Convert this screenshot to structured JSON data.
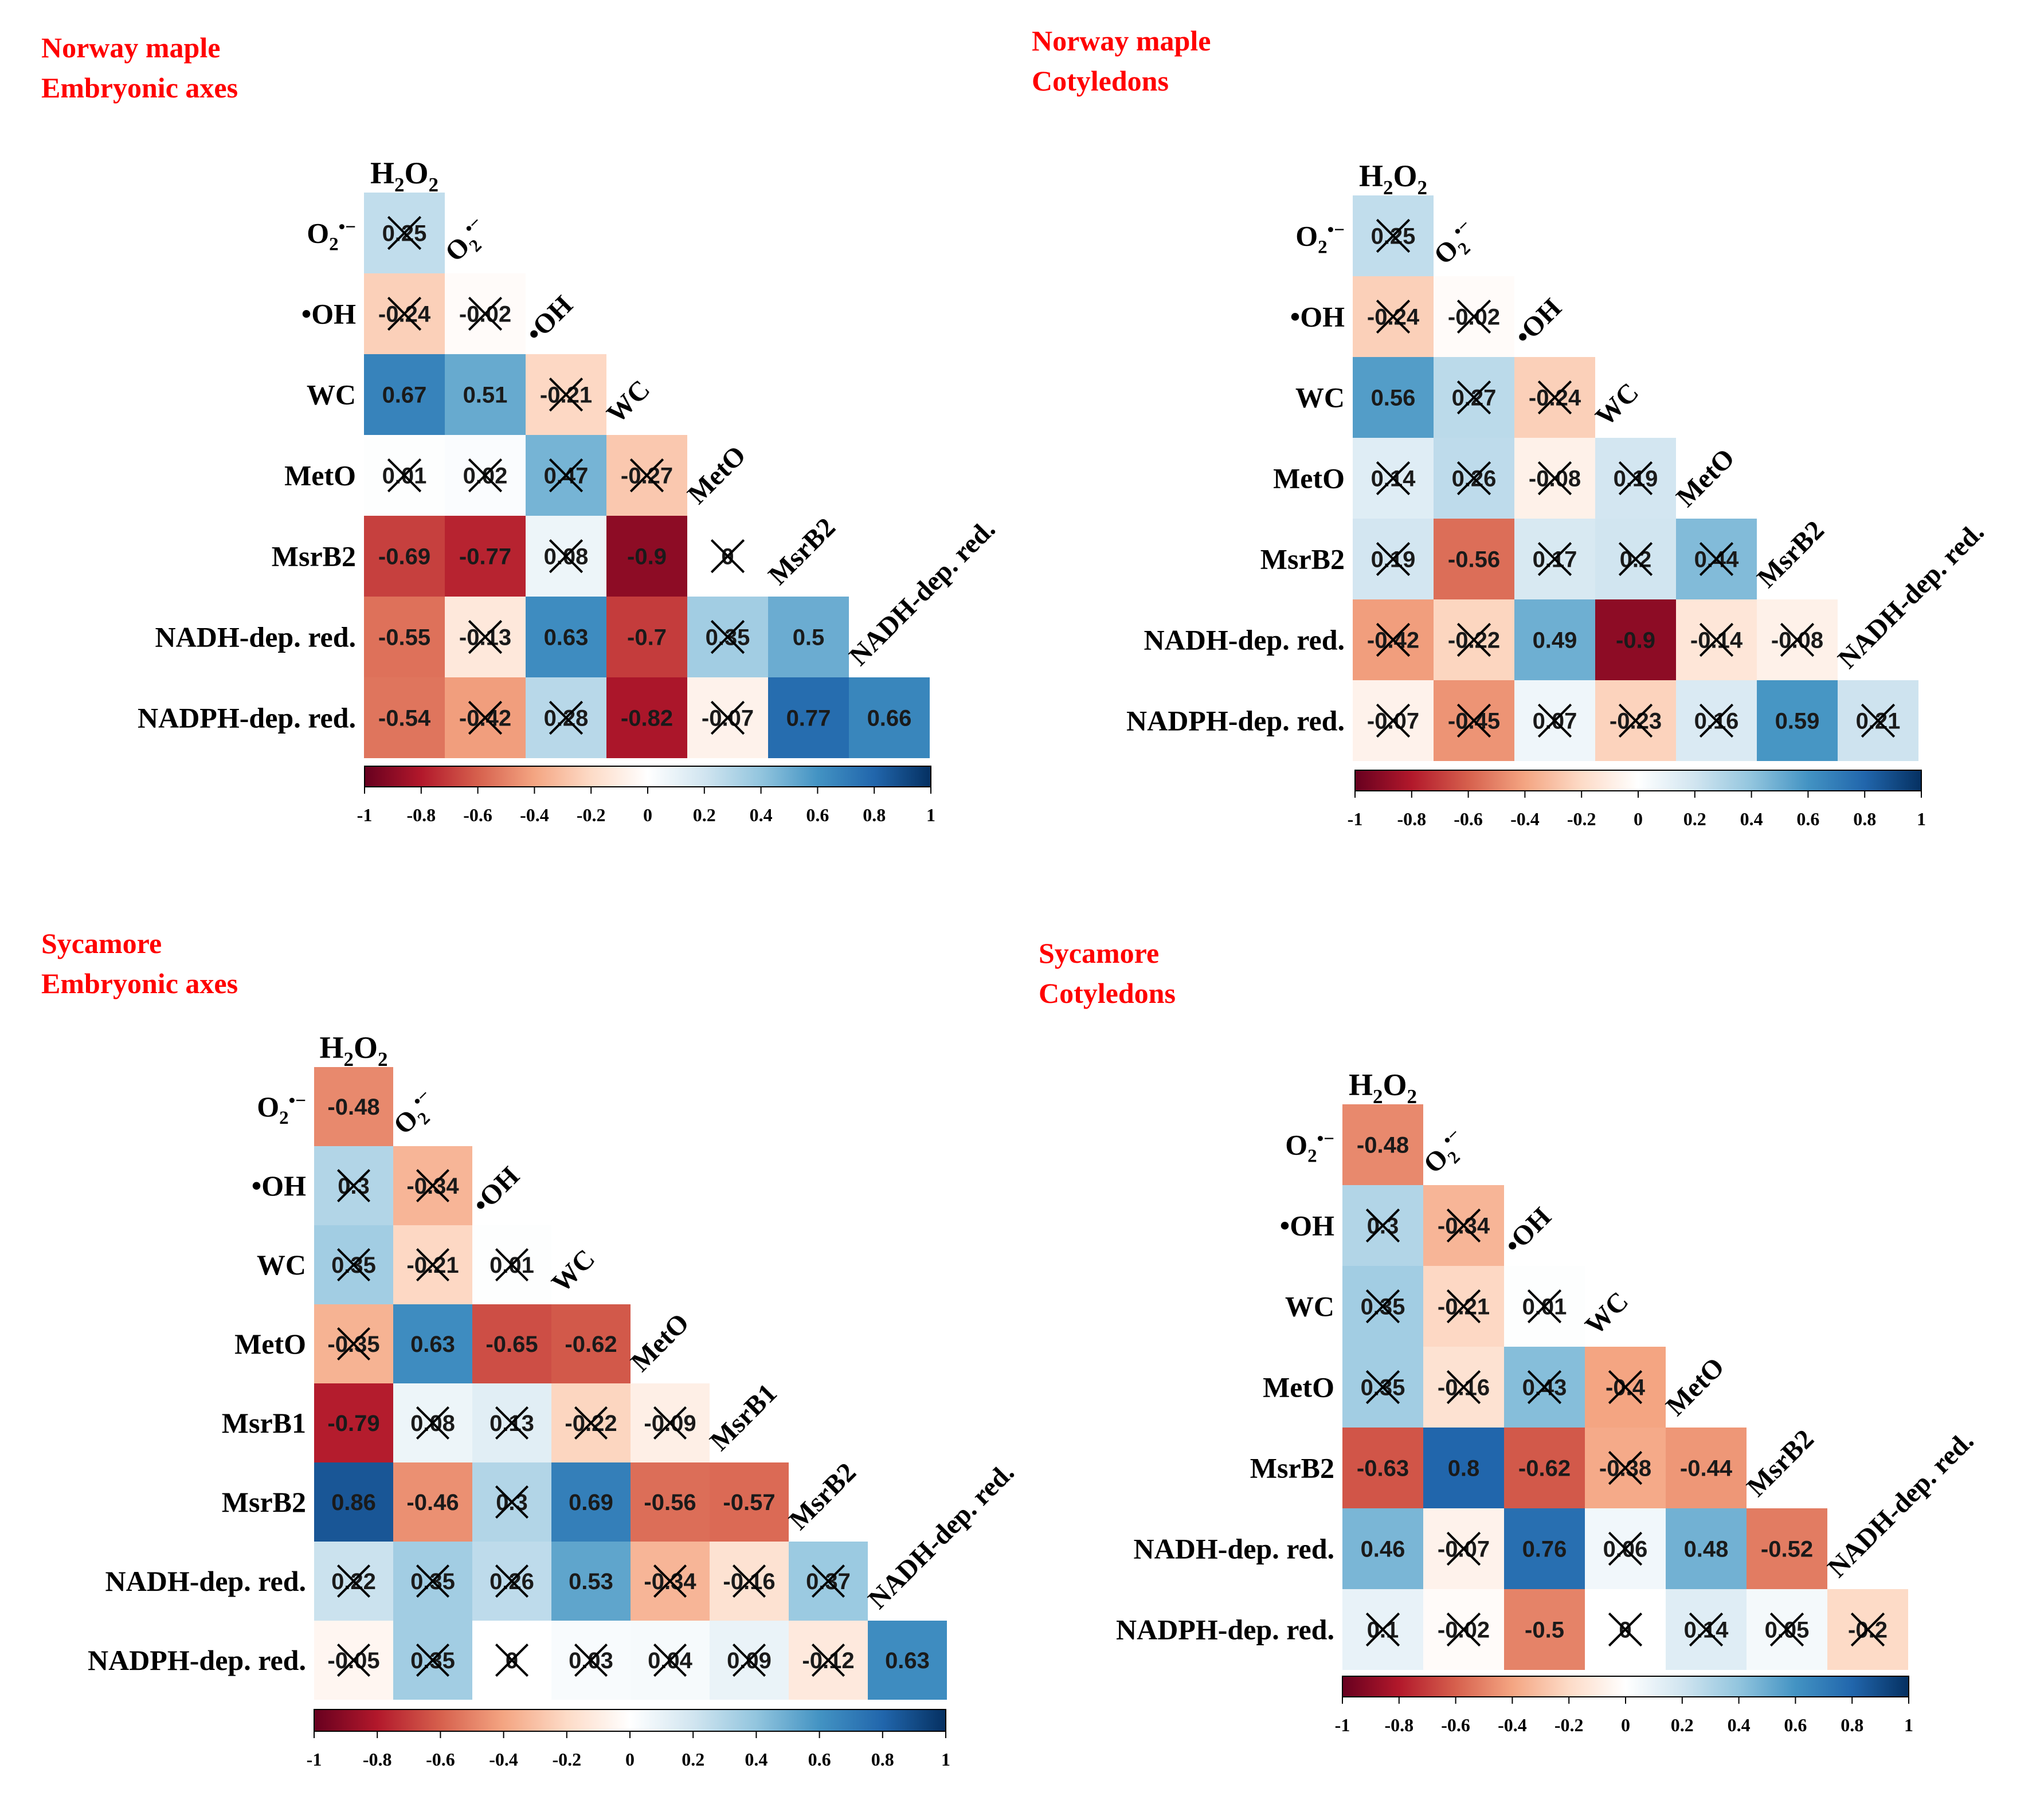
{
  "colors": {
    "title_text": "#ff0000",
    "label_text": "#000000",
    "scale_low": "#67001f",
    "scale_mid": "#ffffff",
    "scale_high": "#053061",
    "cross": "#000000"
  },
  "colorbar_ticks": [
    "-1",
    "-0.8",
    "-0.6",
    "-0.4",
    "-0.2",
    "0",
    "0.2",
    "0.4",
    "0.6",
    "0.8",
    "1"
  ],
  "chart_data": [
    {
      "type": "heatmap",
      "subtype": "lower-triangle correlation matrix",
      "title_line1": "Norway maple",
      "title_line2": "Embryonic axes",
      "vmin": -1,
      "vmax": 1,
      "variables": [
        "H2O2",
        "O2•−",
        "•OH",
        "WC",
        "MetO",
        "MsrB2",
        "NADH-dep. red.",
        "NADPH-dep. red."
      ],
      "row_labels": [
        "O2•−",
        "•OH",
        "WC",
        "MetO",
        "MsrB2",
        "NADH-dep. red.",
        "NADPH-dep. red."
      ],
      "col_labels": [
        "H2O2",
        "O2•−",
        "•OH",
        "WC",
        "MetO",
        "MsrB2",
        "NADH-dep. red."
      ],
      "values": [
        [
          0.25
        ],
        [
          -0.24,
          -0.02
        ],
        [
          0.67,
          0.51,
          -0.21
        ],
        [
          0.01,
          0.02,
          0.47,
          -0.27
        ],
        [
          -0.69,
          -0.77,
          0.08,
          -0.9,
          0
        ],
        [
          -0.55,
          -0.13,
          0.63,
          -0.7,
          0.35,
          0.5
        ],
        [
          -0.54,
          -0.42,
          0.28,
          -0.82,
          -0.07,
          0.77,
          0.66
        ]
      ],
      "labels": [
        [
          "0.25"
        ],
        [
          "-0.24",
          "-0.02"
        ],
        [
          "0.67",
          "0.51",
          "-0.21"
        ],
        [
          "0.01",
          "0.02",
          "0.47",
          "-0.27"
        ],
        [
          "-0.69",
          "-0.77",
          "0.08",
          "-0.9",
          "0"
        ],
        [
          "-0.55",
          "-0.13",
          "0.63",
          "-0.7",
          "0.35",
          "0.5"
        ],
        [
          "-0.54",
          "-0.42",
          "0.28",
          "-0.82",
          "-0.07",
          "0.77",
          "0.66"
        ]
      ],
      "crossed": [
        [
          true
        ],
        [
          true,
          true
        ],
        [
          false,
          false,
          true
        ],
        [
          true,
          true,
          true,
          true
        ],
        [
          false,
          false,
          true,
          false,
          true
        ],
        [
          false,
          true,
          false,
          false,
          true,
          false
        ],
        [
          false,
          true,
          true,
          false,
          true,
          false,
          false
        ]
      ]
    },
    {
      "type": "heatmap",
      "subtype": "lower-triangle correlation matrix",
      "title_line1": "Norway maple",
      "title_line2": "Cotyledons",
      "vmin": -1,
      "vmax": 1,
      "variables": [
        "H2O2",
        "O2•−",
        "•OH",
        "WC",
        "MetO",
        "MsrB2",
        "NADH-dep. red.",
        "NADPH-dep. red."
      ],
      "row_labels": [
        "O2•−",
        "•OH",
        "WC",
        "MetO",
        "MsrB2",
        "NADH-dep. red.",
        "NADPH-dep. red."
      ],
      "col_labels": [
        "H2O2",
        "O2•−",
        "•OH",
        "WC",
        "MetO",
        "MsrB2",
        "NADH-dep. red."
      ],
      "values": [
        [
          0.25
        ],
        [
          -0.24,
          -0.02
        ],
        [
          0.56,
          0.27,
          -0.24
        ],
        [
          0.14,
          0.26,
          -0.08,
          0.19
        ],
        [
          0.19,
          -0.56,
          0.17,
          0.2,
          0.44
        ],
        [
          -0.42,
          -0.22,
          0.49,
          -0.9,
          -0.14,
          -0.08
        ],
        [
          -0.07,
          -0.45,
          0.07,
          -0.23,
          0.16,
          0.59,
          0.21
        ]
      ],
      "labels": [
        [
          "0.25"
        ],
        [
          "-0.24",
          "-0.02"
        ],
        [
          "0.56",
          "0.27",
          "-0.24"
        ],
        [
          "0.14",
          "0.26",
          "-0.08",
          "0.19"
        ],
        [
          "0.19",
          "-0.56",
          "0.17",
          "0.2",
          "0.44"
        ],
        [
          "-0.42",
          "-0.22",
          "0.49",
          "-0.9",
          "-0.14",
          "-0.08"
        ],
        [
          "-0.07",
          "-0.45",
          "0.07",
          "-0.23",
          "0.16",
          "0.59",
          "0.21"
        ]
      ],
      "crossed": [
        [
          true
        ],
        [
          true,
          true
        ],
        [
          false,
          true,
          true
        ],
        [
          true,
          true,
          true,
          true
        ],
        [
          true,
          false,
          true,
          true,
          true
        ],
        [
          true,
          true,
          false,
          false,
          true,
          true
        ],
        [
          true,
          true,
          true,
          true,
          true,
          false,
          true
        ]
      ]
    },
    {
      "type": "heatmap",
      "subtype": "lower-triangle correlation matrix",
      "title_line1": "Sycamore",
      "title_line2": "Embryonic axes",
      "vmin": -1,
      "vmax": 1,
      "variables": [
        "H2O2",
        "O2•−",
        "•OH",
        "WC",
        "MetO",
        "MsrB1",
        "MsrB2",
        "NADH-dep. red.",
        "NADPH-dep. red."
      ],
      "row_labels": [
        "O2•−",
        "•OH",
        "WC",
        "MetO",
        "MsrB1",
        "MsrB2",
        "NADH-dep. red.",
        "NADPH-dep. red."
      ],
      "col_labels": [
        "H2O2",
        "O2•−",
        "•OH",
        "WC",
        "MetO",
        "MsrB1",
        "MsrB2",
        "NADH-dep. red."
      ],
      "values": [
        [
          -0.48
        ],
        [
          0.3,
          -0.34
        ],
        [
          0.35,
          -0.21,
          0.01
        ],
        [
          -0.35,
          0.63,
          -0.65,
          -0.62
        ],
        [
          -0.79,
          0.08,
          0.13,
          -0.22,
          -0.09
        ],
        [
          0.86,
          -0.46,
          0.3,
          0.69,
          -0.56,
          -0.57
        ],
        [
          0.22,
          0.35,
          0.26,
          0.53,
          -0.34,
          -0.16,
          0.37
        ],
        [
          -0.05,
          0.35,
          0,
          0.03,
          0.04,
          0.09,
          -0.12,
          0.63
        ]
      ],
      "labels": [
        [
          "-0.48"
        ],
        [
          "0.3",
          "-0.34"
        ],
        [
          "0.35",
          "-0.21",
          "0.01"
        ],
        [
          "-0.35",
          "0.63",
          "-0.65",
          "-0.62"
        ],
        [
          "-0.79",
          "0.08",
          "0.13",
          "-0.22",
          "-0.09"
        ],
        [
          "0.86",
          "-0.46",
          "0.3",
          "0.69",
          "-0.56",
          "-0.57"
        ],
        [
          "0.22",
          "0.35",
          "0.26",
          "0.53",
          "-0.34",
          "-0.16",
          "0.37"
        ],
        [
          "-0.05",
          "0.35",
          "0",
          "0.03",
          "0.04",
          "0.09",
          "-0.12",
          "0.63"
        ]
      ],
      "crossed": [
        [
          false
        ],
        [
          true,
          true
        ],
        [
          true,
          true,
          true
        ],
        [
          true,
          false,
          false,
          false
        ],
        [
          false,
          true,
          true,
          true,
          true
        ],
        [
          false,
          false,
          true,
          false,
          false,
          false
        ],
        [
          true,
          true,
          true,
          false,
          true,
          true,
          true
        ],
        [
          true,
          true,
          true,
          true,
          true,
          true,
          true,
          false
        ]
      ]
    },
    {
      "type": "heatmap",
      "subtype": "lower-triangle correlation matrix",
      "title_line1": "Sycamore",
      "title_line2": "Cotyledons",
      "vmin": -1,
      "vmax": 1,
      "variables": [
        "H2O2",
        "O2•−",
        "•OH",
        "WC",
        "MetO",
        "MsrB2",
        "NADH-dep. red.",
        "NADPH-dep. red."
      ],
      "row_labels": [
        "O2•−",
        "•OH",
        "WC",
        "MetO",
        "MsrB2",
        "NADH-dep. red.",
        "NADPH-dep. red."
      ],
      "col_labels": [
        "H2O2",
        "O2•−",
        "•OH",
        "WC",
        "MetO",
        "MsrB2",
        "NADH-dep. red."
      ],
      "values": [
        [
          -0.48
        ],
        [
          0.3,
          -0.34
        ],
        [
          0.35,
          -0.21,
          0.01
        ],
        [
          0.35,
          -0.16,
          0.43,
          -0.4
        ],
        [
          -0.63,
          0.8,
          -0.62,
          -0.38,
          -0.44
        ],
        [
          0.46,
          -0.07,
          0.76,
          0.06,
          0.48,
          -0.52
        ],
        [
          0.1,
          -0.02,
          -0.5,
          0,
          0.14,
          0.05,
          -0.2
        ]
      ],
      "labels": [
        [
          "-0.48"
        ],
        [
          "0.3",
          "-0.34"
        ],
        [
          "0.35",
          "-0.21",
          "0.01"
        ],
        [
          "0.35",
          "-0.16",
          "0.43",
          "-0.4"
        ],
        [
          "-0.63",
          "0.8",
          "-0.62",
          "-0.38",
          "-0.44"
        ],
        [
          "0.46",
          "-0.07",
          "0.76",
          "0.06",
          "0.48",
          "-0.52"
        ],
        [
          "0.1",
          "-0.02",
          "-0.5",
          "0",
          "0.14",
          "0.05",
          "-0.2"
        ]
      ],
      "crossed": [
        [
          false
        ],
        [
          true,
          true
        ],
        [
          true,
          true,
          true
        ],
        [
          true,
          true,
          true,
          true
        ],
        [
          false,
          false,
          false,
          true,
          false
        ],
        [
          false,
          true,
          false,
          true,
          false,
          false
        ],
        [
          true,
          true,
          false,
          true,
          true,
          true,
          true
        ]
      ]
    }
  ]
}
